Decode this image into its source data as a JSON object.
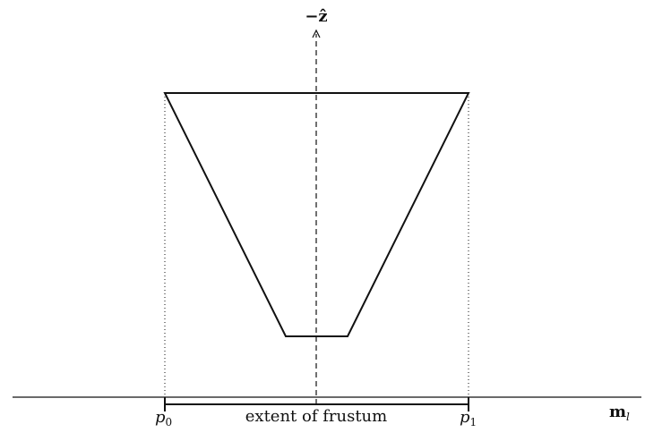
{
  "labels": {
    "axis_top": "−ẑ",
    "axis_right_main": "m",
    "axis_right_sub": "l",
    "p0_main": "p",
    "p0_sub": "0",
    "p1_main": "p",
    "p1_sub": "1",
    "extent": "extent of frustum"
  }
}
